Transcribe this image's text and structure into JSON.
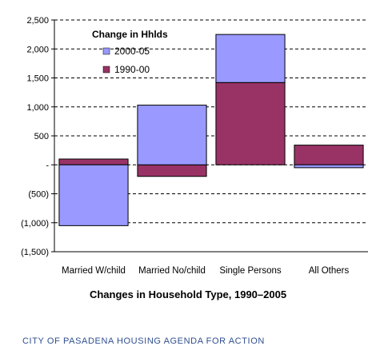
{
  "chart_data": {
    "type": "bar",
    "stacked": true,
    "categories": [
      "Married W/child",
      "Married No/child",
      "Single Persons",
      "All Others"
    ],
    "series": [
      {
        "name": "1990-00",
        "values": [
          100,
          -200,
          1420,
          340
        ]
      },
      {
        "name": "2000-05",
        "values": [
          -1050,
          1030,
          830,
          -50
        ]
      }
    ],
    "ylim": [
      -1500,
      2500
    ],
    "yticks": [
      -1500,
      -1000,
      -500,
      0,
      500,
      1000,
      1500,
      2000,
      2500
    ],
    "ytick_labels": [
      "(1,500)",
      "(1,000)",
      "(500)",
      "-",
      "500",
      "1,000",
      "1,500",
      "2,000",
      "2,500"
    ],
    "grid": true,
    "legend": {
      "title": "Change in Hhlds",
      "position": "top-left",
      "entries": [
        "2000-05",
        "1990-00"
      ]
    },
    "title": "Changes in Household Type, 1990–2005",
    "xlabel": "",
    "ylabel": ""
  },
  "colors": {
    "1990-00": "#993366",
    "2000-05": "#9999ff"
  },
  "footer": "CITY OF PASADENA HOUSING AGENDA FOR ACTION"
}
